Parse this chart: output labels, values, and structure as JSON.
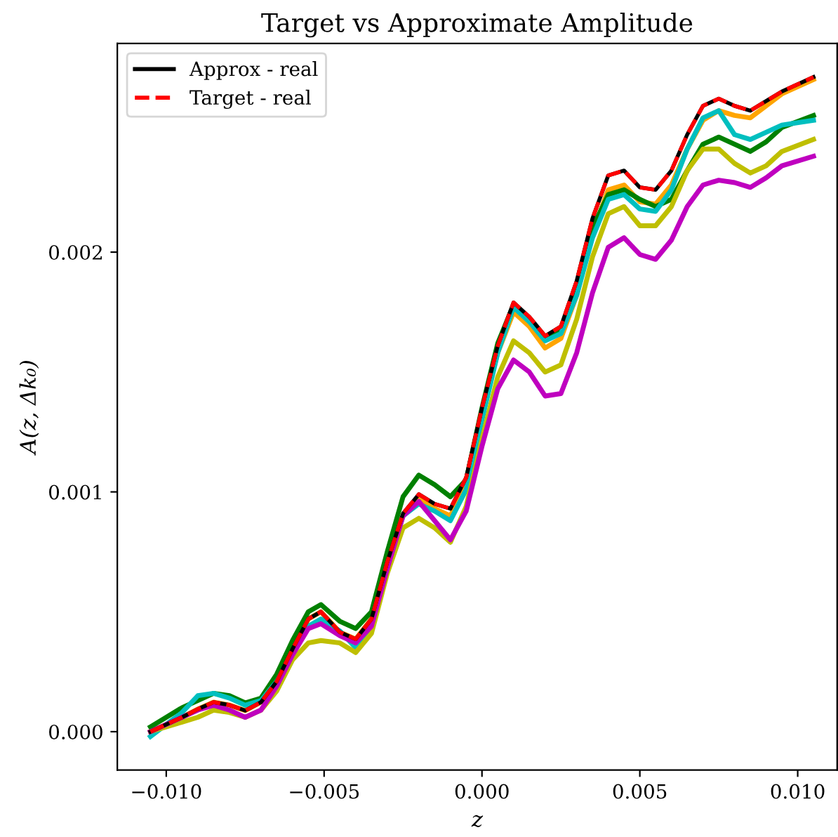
{
  "chart_data": {
    "type": "line",
    "title": "Target vs Approximate Amplitude",
    "xlabel": "z",
    "ylabel": "A(z, Δk₀)",
    "x": [
      -0.0105,
      -0.0095,
      -0.009,
      -0.0085,
      -0.008,
      -0.0075,
      -0.007,
      -0.0065,
      -0.006,
      -0.0055,
      -0.0051,
      -0.0045,
      -0.004,
      -0.0035,
      -0.003,
      -0.0025,
      -0.002,
      -0.0015,
      -0.001,
      -0.0005,
      0,
      0.0005,
      0.001,
      0.0015,
      0.002,
      0.0025,
      0.003,
      0.0035,
      0.004,
      0.0045,
      0.005,
      0.0055,
      0.006,
      0.0065,
      0.007,
      0.0075,
      0.008,
      0.0085,
      0.009,
      0.0095,
      0.0105
    ],
    "series": [
      {
        "color": "#ffa500",
        "line_style": "solid",
        "values": [
          0,
          6e-05,
          9.4e-05,
          0.000123,
          0.000111,
          8.8e-05,
          0.000123,
          0.00021,
          0.000345,
          0.00047,
          0.0005,
          0.000415,
          0.000386,
          0.00047,
          0.000708,
          0.0009,
          0.00097,
          0.00093,
          0.0009,
          0.00104,
          0.00133,
          0.00158,
          0.00175,
          0.00169,
          0.0016,
          0.00164,
          0.00182,
          0.00208,
          0.00226,
          0.00228,
          0.00221,
          0.0022,
          0.00228,
          0.00243,
          0.00255,
          0.00259,
          0.00257,
          0.00256,
          0.00261,
          0.00266,
          0.00272
        ]
      },
      {
        "color": "#008000",
        "line_style": "solid",
        "values": [
          2e-05,
          0.0001,
          0.00013,
          0.00016,
          0.00015,
          0.00012,
          0.00014,
          0.00024,
          0.00038,
          0.0005,
          0.00053,
          0.00046,
          0.00043,
          0.0005,
          0.00075,
          0.00098,
          0.00107,
          0.00103,
          0.00098,
          0.00105,
          0.00135,
          0.00162,
          0.00178,
          0.00172,
          0.00164,
          0.00168,
          0.00185,
          0.0021,
          0.00224,
          0.00226,
          0.00222,
          0.00219,
          0.00222,
          0.00234,
          0.00245,
          0.00248,
          0.00245,
          0.00242,
          0.00246,
          0.00252,
          0.00257
        ]
      },
      {
        "color": "#00bfbf",
        "line_style": "solid",
        "values": [
          -2e-05,
          8e-05,
          0.00015,
          0.00016,
          0.00014,
          0.00011,
          0.00013,
          0.00021,
          0.00033,
          0.00044,
          0.00047,
          0.00042,
          0.00035,
          0.00042,
          0.00069,
          0.0009,
          0.00095,
          0.00092,
          0.00088,
          0.00101,
          0.0013,
          0.00158,
          0.00177,
          0.00171,
          0.00163,
          0.00166,
          0.00182,
          0.00206,
          0.00222,
          0.00224,
          0.00218,
          0.00217,
          0.00226,
          0.00243,
          0.00256,
          0.00259,
          0.00249,
          0.00247,
          0.0025,
          0.00253,
          0.00255
        ]
      },
      {
        "color": "#bfbf00",
        "line_style": "solid",
        "values": [
          0,
          4e-05,
          6e-05,
          9e-05,
          8e-05,
          6e-05,
          9e-05,
          0.00017,
          0.0003,
          0.00037,
          0.00038,
          0.00037,
          0.00033,
          0.00041,
          0.00066,
          0.00085,
          0.00089,
          0.00085,
          0.00079,
          0.00094,
          0.00122,
          0.00148,
          0.00163,
          0.00158,
          0.0015,
          0.00153,
          0.00172,
          0.00198,
          0.00216,
          0.00219,
          0.00211,
          0.00211,
          0.00219,
          0.00234,
          0.00243,
          0.00243,
          0.00237,
          0.00233,
          0.00236,
          0.00242,
          0.00247
        ]
      },
      {
        "color": "#bf00bf",
        "line_style": "solid",
        "values": [
          0,
          6e-05,
          9e-05,
          0.00011,
          9e-05,
          6e-05,
          9e-05,
          0.00019,
          0.00032,
          0.00043,
          0.00045,
          0.0004,
          0.00037,
          0.00044,
          0.00068,
          0.0009,
          0.00096,
          0.00088,
          0.0008,
          0.00092,
          0.00119,
          0.00143,
          0.00155,
          0.0015,
          0.0014,
          0.00141,
          0.00158,
          0.00183,
          0.00202,
          0.00206,
          0.00199,
          0.00197,
          0.00205,
          0.00219,
          0.00228,
          0.0023,
          0.00229,
          0.00227,
          0.00231,
          0.00236,
          0.0024
        ]
      },
      {
        "name": "Approx - real",
        "color": "#000000",
        "line_style": "solid",
        "values": [
          0,
          6e-05,
          9.4e-05,
          0.000123,
          0.000111,
          8.8e-05,
          0.000123,
          0.00021,
          0.000345,
          0.00047,
          0.0005,
          0.000415,
          0.000386,
          0.00047,
          0.000708,
          0.00091,
          0.00099,
          0.00095,
          0.00093,
          0.00106,
          0.00135,
          0.00161,
          0.00179,
          0.00173,
          0.00165,
          0.00169,
          0.00188,
          0.00214,
          0.00232,
          0.00234,
          0.00227,
          0.00226,
          0.00234,
          0.00249,
          0.00261,
          0.00264,
          0.00261,
          0.00259,
          0.00263,
          0.00267,
          0.00273
        ]
      },
      {
        "name": "Target - real",
        "color": "#ff0000",
        "line_style": "dashed",
        "values": [
          0,
          6e-05,
          9.4e-05,
          0.000123,
          0.000111,
          8.8e-05,
          0.000123,
          0.00021,
          0.000345,
          0.00047,
          0.0005,
          0.000415,
          0.000386,
          0.00047,
          0.000708,
          0.00091,
          0.00099,
          0.00095,
          0.00093,
          0.00106,
          0.00135,
          0.00161,
          0.00179,
          0.00173,
          0.00165,
          0.00169,
          0.00188,
          0.00214,
          0.00232,
          0.00234,
          0.00227,
          0.00226,
          0.00234,
          0.00249,
          0.00261,
          0.00264,
          0.00261,
          0.00259,
          0.00263,
          0.00267,
          0.00273
        ]
      }
    ],
    "xlim": [
      -0.01155,
      0.01125
    ],
    "ylim": [
      -0.00016,
      0.00287
    ],
    "xticks": [
      {
        "value": -0.01,
        "label": "−0.010"
      },
      {
        "value": -0.005,
        "label": "−0.005"
      },
      {
        "value": 0,
        "label": "0.000"
      },
      {
        "value": 0.005,
        "label": "0.005"
      },
      {
        "value": 0.01,
        "label": "0.010"
      }
    ],
    "yticks": [
      {
        "value": 0,
        "label": "0.000"
      },
      {
        "value": 0.001,
        "label": "0.001"
      },
      {
        "value": 0.002,
        "label": "0.002"
      }
    ],
    "legend": "top left",
    "grid": false
  }
}
